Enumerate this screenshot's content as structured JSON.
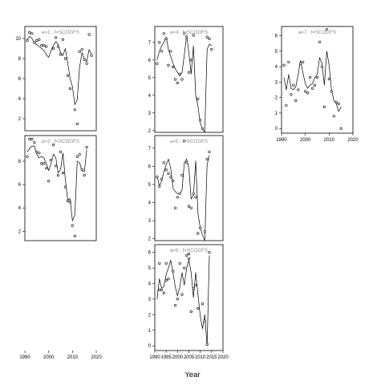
{
  "xlabel": "Year",
  "chart_data": [
    {
      "type": "scatter",
      "title": "a=1  :  f=SCOGFS",
      "xlim": [
        1990,
        2020
      ],
      "ylim": [
        0.8,
        11.2
      ],
      "xticks": [],
      "yticks": [
        2,
        4,
        6,
        8,
        10
      ],
      "points": [
        [
          1991,
          9.8
        ],
        [
          1992,
          10.6
        ],
        [
          1993,
          10.5
        ],
        [
          1994,
          9.6
        ],
        [
          1995,
          9.8
        ],
        [
          1996,
          9.9
        ],
        [
          1997,
          9.3
        ],
        [
          1998,
          9.3
        ],
        [
          1999,
          9.2
        ],
        [
          2002,
          9.0
        ],
        [
          2003,
          10.1
        ],
        [
          2004,
          9.2
        ],
        [
          2005,
          8.4
        ],
        [
          2006,
          9.9
        ],
        [
          2007,
          8.0
        ],
        [
          2008,
          6.3
        ],
        [
          2009,
          5.0
        ],
        [
          2011,
          2.9
        ],
        [
          2012,
          1.5
        ],
        [
          2013,
          8.7
        ],
        [
          2014,
          8.9
        ],
        [
          2015,
          7.9
        ],
        [
          2016,
          7.5
        ],
        [
          2017,
          10.4
        ],
        [
          2018,
          8.3
        ]
      ],
      "line": [
        [
          1991,
          9.9
        ],
        [
          1992,
          10.2
        ],
        [
          1993,
          10.0
        ],
        [
          1994,
          9.5
        ],
        [
          1995,
          9.4
        ],
        [
          1996,
          9.2
        ],
        [
          1997,
          9.0
        ],
        [
          1998,
          8.8
        ],
        [
          1999,
          8.4
        ],
        [
          2000,
          8.1
        ],
        [
          2001,
          8.8
        ],
        [
          2002,
          9.3
        ],
        [
          2003,
          9.7
        ],
        [
          2004,
          9.4
        ],
        [
          2005,
          8.6
        ],
        [
          2006,
          8.3
        ],
        [
          2007,
          9.0
        ],
        [
          2008,
          7.6
        ],
        [
          2009,
          6.0
        ],
        [
          2010,
          5.2
        ],
        [
          2011,
          3.4
        ],
        [
          2012,
          3.9
        ],
        [
          2013,
          7.1
        ],
        [
          2014,
          8.6
        ],
        [
          2015,
          7.9
        ],
        [
          2016,
          7.7
        ],
        [
          2017,
          8.9
        ],
        [
          2018,
          8.4
        ]
      ]
    },
    {
      "type": "scatter",
      "title": "a=4  :  f=SCOGFS",
      "xlim": [
        1990,
        2020
      ],
      "ylim": [
        1.9,
        7.9
      ],
      "xticks": [],
      "yticks": [
        2,
        3,
        4,
        5,
        6,
        7
      ],
      "points": [
        [
          1991,
          5.8
        ],
        [
          1992,
          7.0
        ],
        [
          1993,
          6.5
        ],
        [
          1994,
          7.5
        ],
        [
          1995,
          7.2
        ],
        [
          1996,
          5.7
        ],
        [
          1997,
          6.5
        ],
        [
          1998,
          5.6
        ],
        [
          1999,
          4.9
        ],
        [
          2000,
          4.7
        ],
        [
          2001,
          5.2
        ],
        [
          2002,
          4.9
        ],
        [
          2003,
          7.5
        ],
        [
          2004,
          7.3
        ],
        [
          2005,
          5.3
        ],
        [
          2006,
          6.0
        ],
        [
          2007,
          7.4
        ],
        [
          2009,
          3.8
        ],
        [
          2010,
          2.6
        ],
        [
          2011,
          2.1
        ],
        [
          2013,
          7.3
        ],
        [
          2014,
          7.2
        ],
        [
          2015,
          6.6
        ]
      ],
      "line": [
        [
          1991,
          6.0
        ],
        [
          1992,
          6.5
        ],
        [
          1993,
          6.8
        ],
        [
          1994,
          7.0
        ],
        [
          1995,
          7.3
        ],
        [
          1996,
          6.6
        ],
        [
          1997,
          6.2
        ],
        [
          1998,
          5.8
        ],
        [
          1999,
          5.5
        ],
        [
          2000,
          5.3
        ],
        [
          2001,
          5.1
        ],
        [
          2002,
          5.3
        ],
        [
          2003,
          6.3
        ],
        [
          2004,
          7.4
        ],
        [
          2005,
          6.4
        ],
        [
          2006,
          5.2
        ],
        [
          2007,
          6.8
        ],
        [
          2008,
          4.0
        ],
        [
          2009,
          3.4
        ],
        [
          2010,
          2.4
        ],
        [
          2011,
          2.1
        ],
        [
          2012,
          1.9
        ],
        [
          2013,
          6.6
        ],
        [
          2014,
          6.9
        ],
        [
          2015,
          6.8
        ]
      ]
    },
    {
      "type": "scatter",
      "title": "a=7  :  f=SCOGFS",
      "xlim": [
        1990,
        2020
      ],
      "ylim": [
        -0.3,
        6.6
      ],
      "xticks": [
        1990,
        2000,
        2010,
        2020
      ],
      "yticks": [
        0,
        1,
        2,
        3,
        4,
        5,
        6
      ],
      "points": [
        [
          1991,
          4.1
        ],
        [
          1992,
          1.5
        ],
        [
          1993,
          4.3
        ],
        [
          1994,
          2.2
        ],
        [
          1995,
          2.8
        ],
        [
          1996,
          1.8
        ],
        [
          1997,
          2.5
        ],
        [
          1998,
          4.2
        ],
        [
          1999,
          4.3
        ],
        [
          2000,
          2.4
        ],
        [
          2001,
          2.3
        ],
        [
          2002,
          3.3
        ],
        [
          2003,
          2.6
        ],
        [
          2004,
          2.8
        ],
        [
          2005,
          3.3
        ],
        [
          2006,
          5.6
        ],
        [
          2007,
          4.0
        ],
        [
          2008,
          1.4
        ],
        [
          2009,
          6.4
        ],
        [
          2010,
          3.2
        ],
        [
          2011,
          2.4
        ],
        [
          2012,
          0.8
        ],
        [
          2013,
          1.7
        ],
        [
          2014,
          1.6
        ],
        [
          2015,
          0.0
        ]
      ],
      "line": [
        [
          1991,
          3.3
        ],
        [
          1992,
          2.5
        ],
        [
          1993,
          3.5
        ],
        [
          1994,
          2.6
        ],
        [
          1995,
          2.5
        ],
        [
          1996,
          2.7
        ],
        [
          1997,
          3.5
        ],
        [
          1998,
          4.4
        ],
        [
          1999,
          3.6
        ],
        [
          2000,
          2.9
        ],
        [
          2001,
          2.6
        ],
        [
          2002,
          2.8
        ],
        [
          2003,
          2.9
        ],
        [
          2004,
          3.3
        ],
        [
          2005,
          3.5
        ],
        [
          2006,
          4.6
        ],
        [
          2007,
          4.2
        ],
        [
          2008,
          2.8
        ],
        [
          2009,
          5.0
        ],
        [
          2010,
          4.1
        ],
        [
          2011,
          2.5
        ],
        [
          2012,
          1.8
        ],
        [
          2013,
          1.6
        ],
        [
          2014,
          1.1
        ],
        [
          2015,
          1.4
        ]
      ]
    },
    {
      "type": "scatter",
      "title": "a=2  :  f=SCOGFS",
      "xlim": [
        1990,
        2020
      ],
      "ylim": [
        1.2,
        10.2
      ],
      "xticks": [],
      "yticks": [
        2,
        4,
        6,
        8
      ],
      "points": [
        [
          1991,
          8.4
        ],
        [
          1992,
          9.9
        ],
        [
          1993,
          9.9
        ],
        [
          1994,
          9.6
        ],
        [
          1995,
          8.8
        ],
        [
          1996,
          8.7
        ],
        [
          1997,
          7.8
        ],
        [
          1998,
          7.8
        ],
        [
          1999,
          7.4
        ],
        [
          2000,
          6.3
        ],
        [
          2001,
          8.1
        ],
        [
          2002,
          9.4
        ],
        [
          2003,
          7.6
        ],
        [
          2004,
          6.8
        ],
        [
          2005,
          8.8
        ],
        [
          2006,
          7.0
        ],
        [
          2007,
          5.8
        ],
        [
          2008,
          4.6
        ],
        [
          2009,
          4.5
        ],
        [
          2010,
          2.5
        ],
        [
          2011,
          1.6
        ],
        [
          2012,
          8.4
        ],
        [
          2013,
          8.6
        ],
        [
          2014,
          7.3
        ],
        [
          2015,
          6.8
        ],
        [
          2016,
          9.2
        ]
      ],
      "line": [
        [
          1991,
          8.8
        ],
        [
          1992,
          9.1
        ],
        [
          1993,
          9.3
        ],
        [
          1994,
          9.3
        ],
        [
          1995,
          8.6
        ],
        [
          1996,
          8.3
        ],
        [
          1997,
          8.4
        ],
        [
          1998,
          8.3
        ],
        [
          1999,
          7.8
        ],
        [
          2000,
          7.2
        ],
        [
          2001,
          7.8
        ],
        [
          2002,
          8.6
        ],
        [
          2003,
          8.3
        ],
        [
          2004,
          7.0
        ],
        [
          2005,
          7.3
        ],
        [
          2006,
          8.7
        ],
        [
          2007,
          6.5
        ],
        [
          2008,
          4.7
        ],
        [
          2009,
          4.8
        ],
        [
          2010,
          2.9
        ],
        [
          2011,
          3.4
        ],
        [
          2012,
          8.0
        ],
        [
          2013,
          7.9
        ],
        [
          2014,
          7.2
        ],
        [
          2015,
          7.1
        ],
        [
          2016,
          9.0
        ]
      ]
    },
    {
      "type": "scatter",
      "title": "a=5  :  f=SCOGFS",
      "xlim": [
        1990,
        2020
      ],
      "ylim": [
        1.9,
        7.7
      ],
      "xticks": [],
      "yticks": [
        2,
        3,
        4,
        5,
        6,
        7
      ],
      "points": [
        [
          1991,
          5.4
        ],
        [
          1992,
          4.9
        ],
        [
          1993,
          5.3
        ],
        [
          1994,
          6.2
        ],
        [
          1995,
          5.8
        ],
        [
          1996,
          5.6
        ],
        [
          1997,
          5.4
        ],
        [
          1998,
          5.2
        ],
        [
          1999,
          3.7
        ],
        [
          2000,
          4.3
        ],
        [
          2001,
          4.5
        ],
        [
          2002,
          5.5
        ],
        [
          2003,
          7.4
        ],
        [
          2004,
          6.2
        ],
        [
          2005,
          3.8
        ],
        [
          2006,
          3.7
        ],
        [
          2007,
          4.5
        ],
        [
          2008,
          4.3
        ],
        [
          2009,
          2.3
        ],
        [
          2010,
          2.6
        ],
        [
          2012,
          2.4
        ],
        [
          2013,
          6.4
        ],
        [
          2014,
          6.8
        ]
      ],
      "line": [
        [
          1991,
          5.5
        ],
        [
          1992,
          4.9
        ],
        [
          1993,
          5.2
        ],
        [
          1994,
          5.7
        ],
        [
          1995,
          6.1
        ],
        [
          1996,
          6.4
        ],
        [
          1997,
          5.9
        ],
        [
          1998,
          4.8
        ],
        [
          1999,
          4.6
        ],
        [
          2000,
          4.5
        ],
        [
          2001,
          4.5
        ],
        [
          2002,
          4.7
        ],
        [
          2003,
          6.2
        ],
        [
          2004,
          6.4
        ],
        [
          2005,
          5.9
        ],
        [
          2006,
          4.2
        ],
        [
          2007,
          4.4
        ],
        [
          2008,
          6.3
        ],
        [
          2009,
          3.4
        ],
        [
          2010,
          2.6
        ],
        [
          2011,
          2.2
        ],
        [
          2012,
          1.9
        ],
        [
          2013,
          6.1
        ],
        [
          2014,
          6.6
        ]
      ]
    },
    {
      "type": "scatter",
      "title": "a=6  :  f=SCOGFS",
      "xlim": [
        1990,
        2020
      ],
      "ylim": [
        -0.3,
        6.5
      ],
      "xticks": [
        1990,
        1995,
        2000,
        2005,
        2010,
        2015,
        2020
      ],
      "yticks": [
        0,
        1,
        2,
        3,
        4,
        5,
        6
      ],
      "points": [
        [
          1992,
          3.6
        ],
        [
          1992,
          5.3
        ],
        [
          1993,
          3.6
        ],
        [
          1994,
          3.4
        ],
        [
          1995,
          5.3
        ],
        [
          1995,
          4.2
        ],
        [
          1996,
          4.3
        ],
        [
          1998,
          4.8
        ],
        [
          1999,
          2.6
        ],
        [
          2000,
          3.0
        ],
        [
          2001,
          5.3
        ],
        [
          2002,
          3.3
        ],
        [
          2003,
          5.0
        ],
        [
          2004,
          5.8
        ],
        [
          2005,
          5.9
        ],
        [
          2005,
          5.6
        ],
        [
          2006,
          2.2
        ],
        [
          2007,
          3.7
        ],
        [
          2008,
          3.9
        ],
        [
          2009,
          2.4
        ],
        [
          2011,
          2.7
        ],
        [
          2012,
          1.6
        ],
        [
          2013,
          0.1
        ],
        [
          2014,
          6.0
        ]
      ],
      "line": [
        [
          1991,
          3.0
        ],
        [
          1992,
          4.3
        ],
        [
          1993,
          3.7
        ],
        [
          1994,
          3.8
        ],
        [
          1995,
          4.6
        ],
        [
          1996,
          5.0
        ],
        [
          1997,
          5.5
        ],
        [
          1998,
          4.7
        ],
        [
          1999,
          3.8
        ],
        [
          2000,
          3.2
        ],
        [
          2001,
          3.8
        ],
        [
          2002,
          4.7
        ],
        [
          2003,
          3.9
        ],
        [
          2004,
          5.0
        ],
        [
          2005,
          5.5
        ],
        [
          2006,
          4.7
        ],
        [
          2007,
          3.1
        ],
        [
          2008,
          4.7
        ],
        [
          2009,
          3.3
        ],
        [
          2010,
          1.9
        ],
        [
          2011,
          1.1
        ],
        [
          2012,
          2.0
        ],
        [
          2013,
          0.0
        ],
        [
          2014,
          5.8
        ]
      ]
    }
  ]
}
